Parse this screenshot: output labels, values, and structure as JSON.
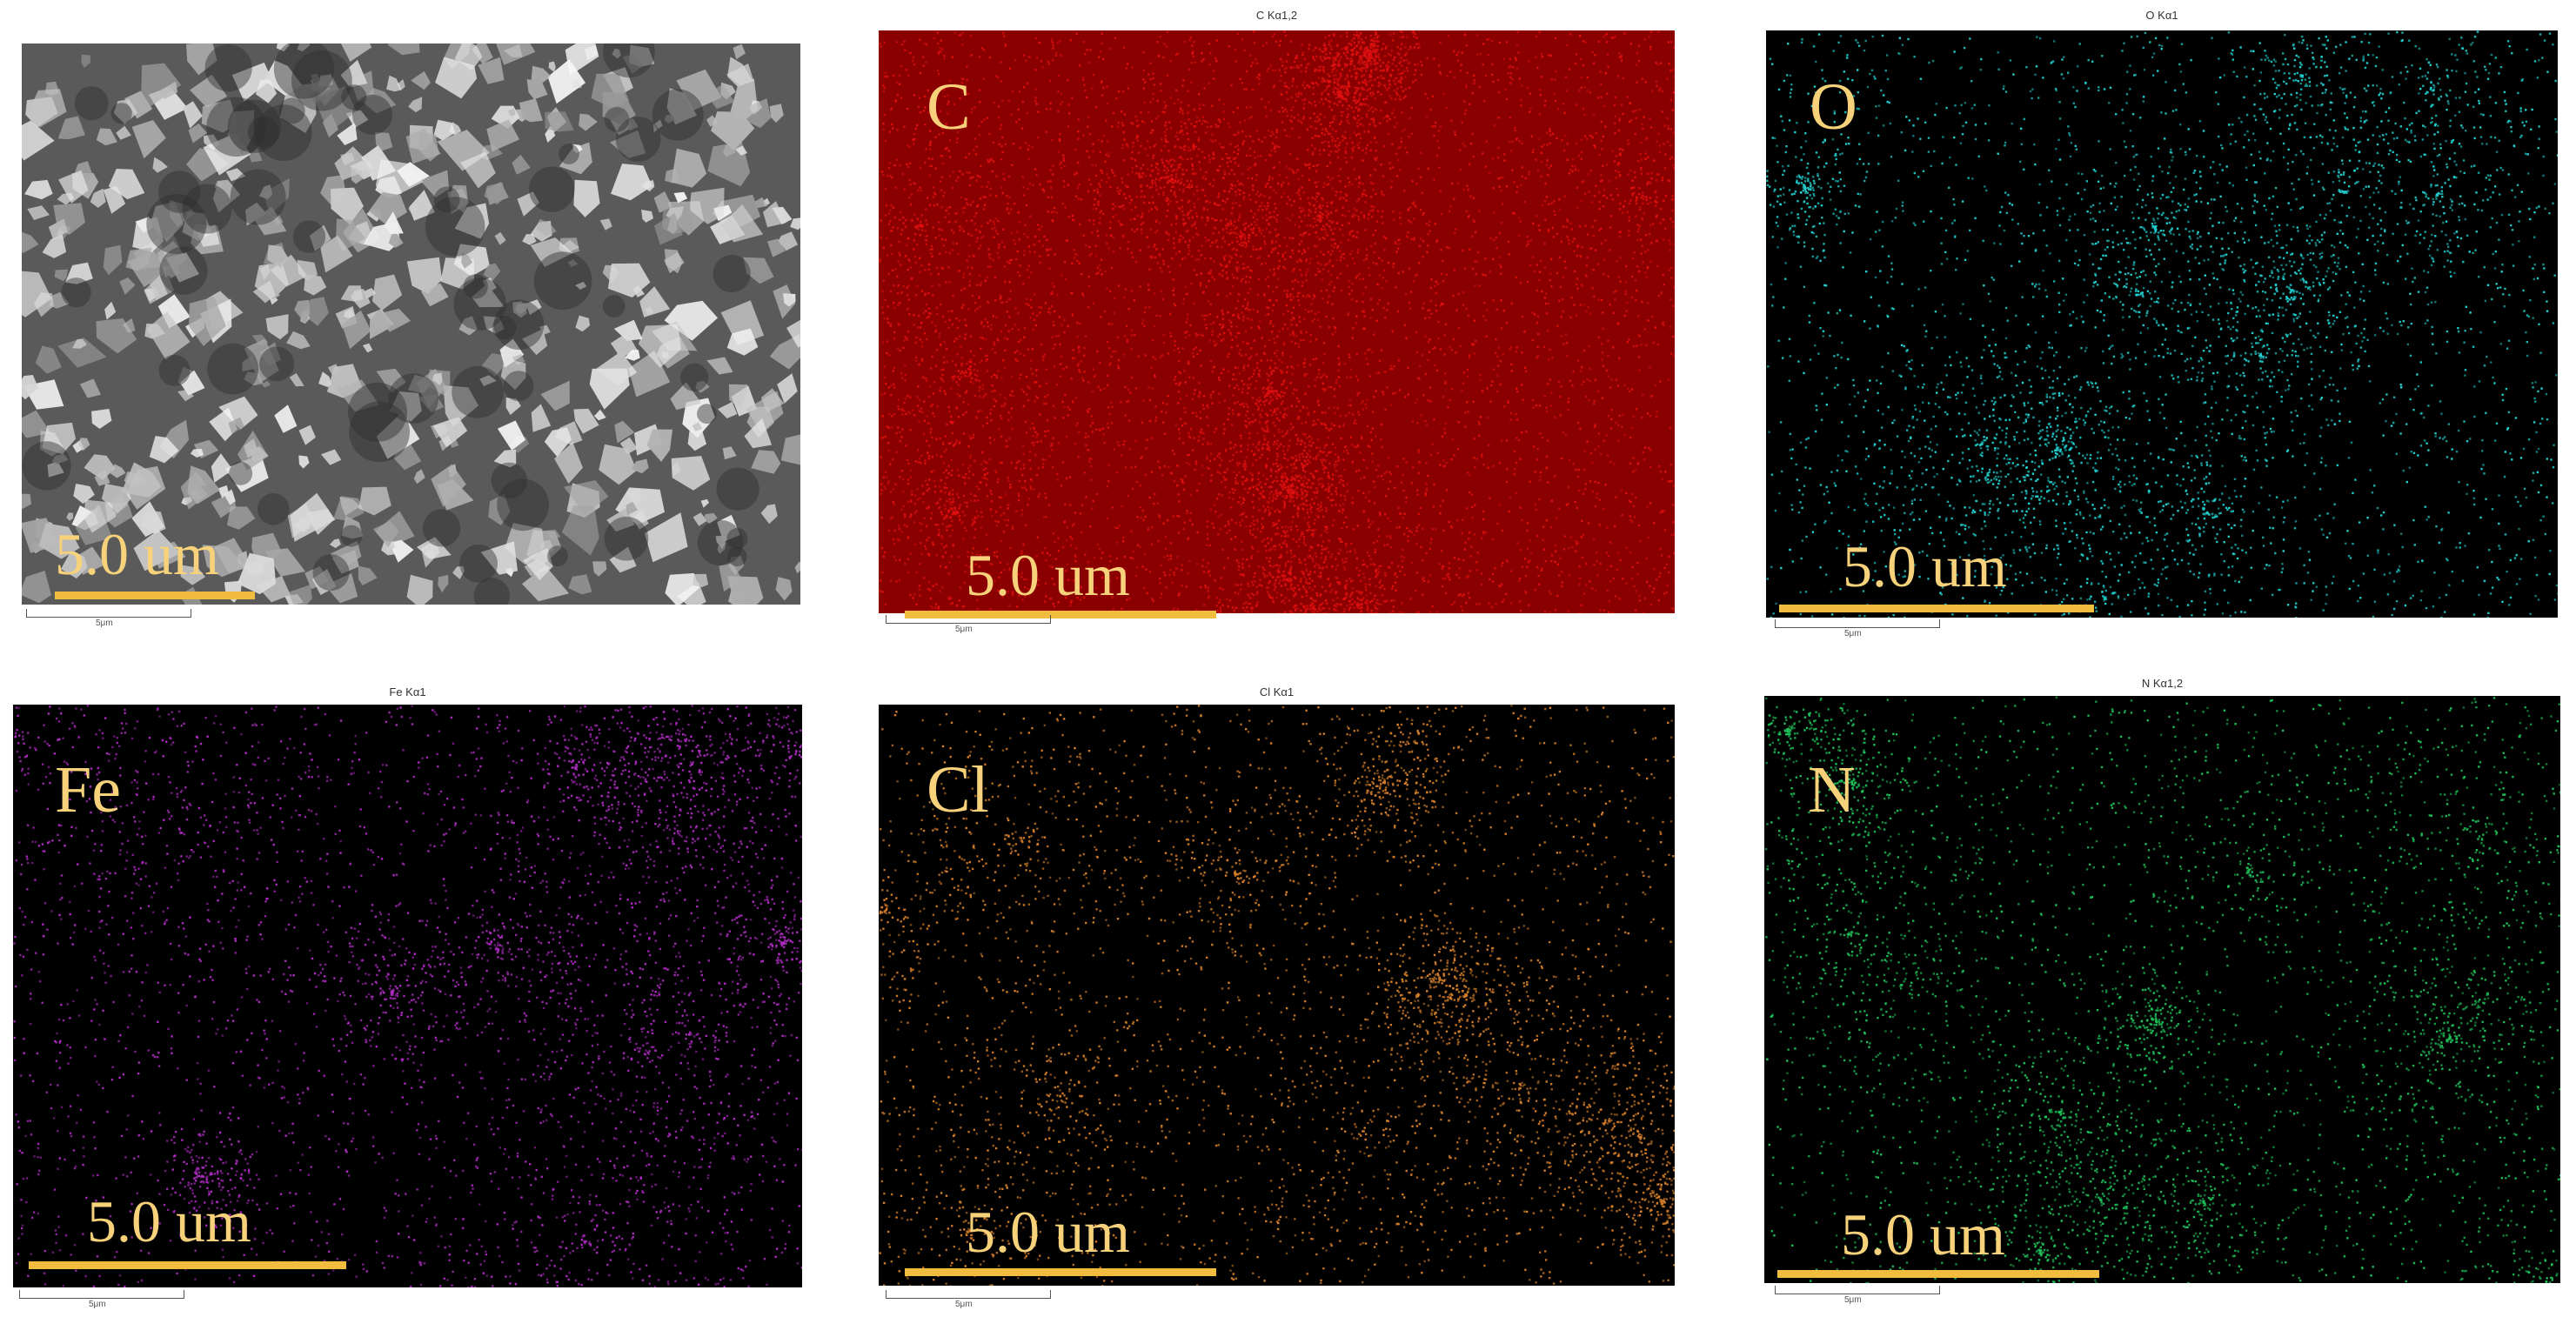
{
  "panels": [
    {
      "id": "sem",
      "caption": "",
      "element": "",
      "scale_label": "5.0 um",
      "mini_scale_label": "5μm",
      "bg": "#5a5a5a",
      "fg": "#d8d8d8"
    },
    {
      "id": "c",
      "caption": "C Kα1,2",
      "element": "C",
      "scale_label": "5.0 um",
      "mini_scale_label": "5μm",
      "bg": "#8a0000",
      "fg": "#e01010"
    },
    {
      "id": "o",
      "caption": "O Kα1",
      "element": "O",
      "scale_label": "5.0 um",
      "mini_scale_label": "5μm",
      "bg": "#000000",
      "fg": "#22d3d3"
    },
    {
      "id": "fe",
      "caption": "Fe Kα1",
      "element": "Fe",
      "scale_label": "5.0 um",
      "mini_scale_label": "5μm",
      "bg": "#000000",
      "fg": "#b02cc4"
    },
    {
      "id": "cl",
      "caption": "Cl Kα1",
      "element": "Cl",
      "scale_label": "5.0 um",
      "mini_scale_label": "5μm",
      "bg": "#000000",
      "fg": "#d9822b"
    },
    {
      "id": "n",
      "caption": "N Kα1,2",
      "element": "N",
      "scale_label": "5.0 um",
      "mini_scale_label": "5μm",
      "bg": "#000000",
      "fg": "#1fc25a"
    }
  ]
}
